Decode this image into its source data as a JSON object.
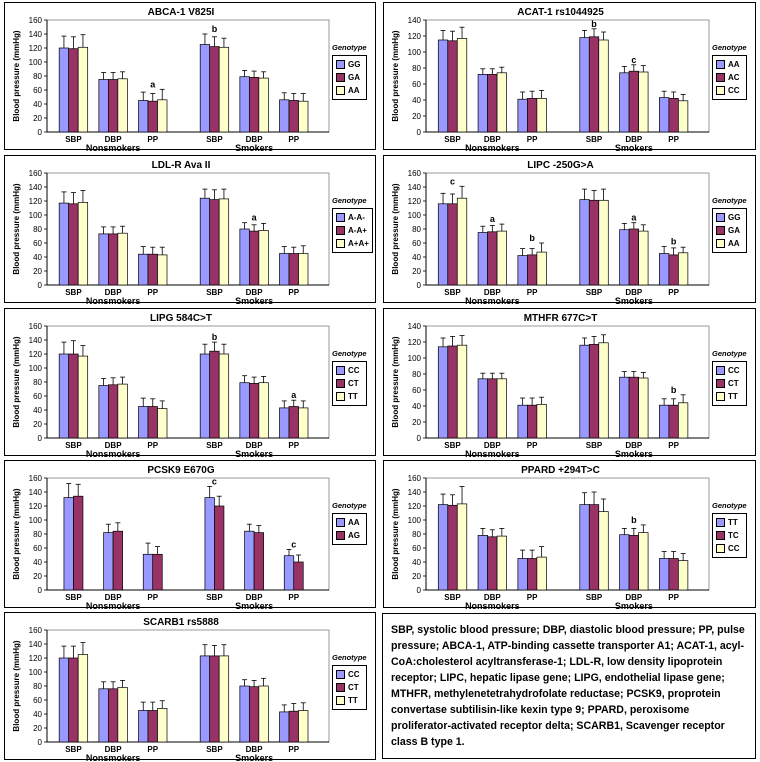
{
  "colors": {
    "s0": "#9999ff",
    "s1": "#993366",
    "s2": "#ffffcc"
  },
  "charts": [
    {
      "title": "ABCA-1 V825I",
      "legend_title": "Genotype",
      "series": [
        "GG",
        "GA",
        "AA"
      ],
      "categories": [
        "SBP",
        "DBP",
        "PP"
      ],
      "groups": [
        "Nonsmokers",
        "Smokers"
      ],
      "ylabel": "Blood pressure (mmHg)",
      "ylim": [
        0,
        160
      ],
      "yticks": [
        "0",
        "20",
        "40",
        "60",
        "80",
        "100",
        "120",
        "140",
        "160"
      ],
      "values": [
        [
          [
            120,
            119,
            121
          ],
          [
            75,
            75,
            76
          ],
          [
            45,
            44,
            46
          ]
        ],
        [
          [
            125,
            122,
            121
          ],
          [
            79,
            78,
            77
          ],
          [
            46,
            45,
            44
          ]
        ]
      ],
      "errors": [
        [
          [
            17,
            17,
            18
          ],
          [
            10,
            10,
            10
          ],
          [
            12,
            11,
            15
          ]
        ],
        [
          [
            15,
            14,
            13
          ],
          [
            9,
            9,
            9
          ],
          [
            10,
            10,
            11
          ]
        ]
      ],
      "annotations": [
        {
          "group": 1,
          "cat": 0,
          "text": "b"
        },
        {
          "group": 0,
          "cat": 2,
          "text": "a"
        }
      ]
    },
    {
      "title": "ACAT-1 rs1044925",
      "legend_title": "Genotype",
      "series": [
        "AA",
        "AC",
        "CC"
      ],
      "categories": [
        "SBP",
        "DBP",
        "PP"
      ],
      "groups": [
        "Nonsmokers",
        "Smokers"
      ],
      "ylabel": "Blood pressure (mmHg)",
      "ylim": [
        0,
        140
      ],
      "yticks": [
        "0",
        "20",
        "40",
        "60",
        "80",
        "100",
        "120",
        "140"
      ],
      "values": [
        [
          [
            115,
            114,
            117
          ],
          [
            72,
            72,
            74
          ],
          [
            41,
            42,
            42
          ]
        ],
        [
          [
            118,
            119,
            115
          ],
          [
            74,
            76,
            75
          ],
          [
            43,
            42,
            39
          ]
        ]
      ],
      "errors": [
        [
          [
            12,
            12,
            14
          ],
          [
            7,
            7,
            7
          ],
          [
            9,
            9,
            10
          ]
        ],
        [
          [
            9,
            10,
            10
          ],
          [
            8,
            8,
            8
          ],
          [
            8,
            8,
            8
          ]
        ]
      ],
      "annotations": [
        {
          "group": 1,
          "cat": 0,
          "text": "b"
        },
        {
          "group": 1,
          "cat": 1,
          "text": "c"
        }
      ]
    },
    {
      "title": "LDL-R Ava II",
      "legend_title": "Genotype",
      "series": [
        "A-A-",
        "A-A+",
        "A+A+"
      ],
      "categories": [
        "SBP",
        "DBP",
        "PP"
      ],
      "groups": [
        "Nonsmokers",
        "Smokers"
      ],
      "ylabel": "Blood pressure (mmHg)",
      "ylim": [
        0,
        160
      ],
      "yticks": [
        "0",
        "20",
        "40",
        "60",
        "80",
        "100",
        "120",
        "140",
        "160"
      ],
      "values": [
        [
          [
            117,
            116,
            118
          ],
          [
            73,
            73,
            74
          ],
          [
            44,
            44,
            43
          ]
        ],
        [
          [
            124,
            122,
            123
          ],
          [
            80,
            77,
            78
          ],
          [
            45,
            45,
            45
          ]
        ]
      ],
      "errors": [
        [
          [
            16,
            16,
            17
          ],
          [
            10,
            10,
            10
          ],
          [
            11,
            10,
            11
          ]
        ],
        [
          [
            13,
            14,
            14
          ],
          [
            9,
            9,
            10
          ],
          [
            10,
            9,
            11
          ]
        ]
      ],
      "annotations": [
        {
          "group": 1,
          "cat": 1,
          "text": "a"
        }
      ]
    },
    {
      "title": "LIPC -250G>A",
      "legend_title": "Genotype",
      "series": [
        "GG",
        "GA",
        "AA"
      ],
      "categories": [
        "SBP",
        "DBP",
        "PP"
      ],
      "groups": [
        "Nonsmokers",
        "Smokers"
      ],
      "ylabel": "Blood pressure (mmHg)",
      "ylim": [
        0,
        160
      ],
      "yticks": [
        "0",
        "20",
        "40",
        "60",
        "80",
        "100",
        "120",
        "140",
        "160"
      ],
      "values": [
        [
          [
            116,
            116,
            124
          ],
          [
            75,
            76,
            77
          ],
          [
            42,
            43,
            47
          ]
        ],
        [
          [
            122,
            121,
            121
          ],
          [
            79,
            80,
            77
          ],
          [
            45,
            43,
            46
          ]
        ]
      ],
      "errors": [
        [
          [
            15,
            14,
            17
          ],
          [
            9,
            9,
            10
          ],
          [
            10,
            9,
            13
          ]
        ],
        [
          [
            15,
            14,
            16
          ],
          [
            9,
            9,
            9
          ],
          [
            10,
            10,
            8
          ]
        ]
      ],
      "annotations": [
        {
          "group": 0,
          "cat": 0,
          "text": "c"
        },
        {
          "group": 0,
          "cat": 1,
          "text": "a"
        },
        {
          "group": 0,
          "cat": 2,
          "text": "b"
        },
        {
          "group": 1,
          "cat": 1,
          "text": "a"
        },
        {
          "group": 1,
          "cat": 2,
          "text": "b"
        }
      ]
    },
    {
      "title": "LIPG 584C>T",
      "legend_title": "Genotype",
      "series": [
        "CC",
        "CT",
        "TT"
      ],
      "categories": [
        "SBP",
        "DBP",
        "PP"
      ],
      "groups": [
        "Nonsmokers",
        "Smokers"
      ],
      "ylabel": "Blood pressure (mmHg)",
      "ylim": [
        0,
        160
      ],
      "yticks": [
        "0",
        "20",
        "40",
        "60",
        "80",
        "100",
        "120",
        "140",
        "160"
      ],
      "values": [
        [
          [
            120,
            120,
            117
          ],
          [
            75,
            76,
            77
          ],
          [
            45,
            45,
            42
          ]
        ],
        [
          [
            120,
            124,
            120
          ],
          [
            79,
            78,
            79
          ],
          [
            43,
            45,
            43
          ]
        ]
      ],
      "errors": [
        [
          [
            17,
            19,
            15
          ],
          [
            10,
            10,
            10
          ],
          [
            12,
            11,
            11
          ]
        ],
        [
          [
            14,
            13,
            14
          ],
          [
            10,
            9,
            9
          ],
          [
            10,
            9,
            10
          ]
        ]
      ],
      "annotations": [
        {
          "group": 1,
          "cat": 0,
          "text": "b"
        },
        {
          "group": 1,
          "cat": 2,
          "text": "a"
        }
      ]
    },
    {
      "title": "MTHFR 677C>T",
      "legend_title": "Genotype",
      "series": [
        "CC",
        "CT",
        "TT"
      ],
      "categories": [
        "SBP",
        "DBP",
        "PP"
      ],
      "groups": [
        "Nonsmokers",
        "Smokers"
      ],
      "ylabel": "Blood pressure (mmHg)",
      "ylim": [
        0,
        140
      ],
      "yticks": [
        "0",
        "20",
        "40",
        "60",
        "80",
        "100",
        "120",
        "140"
      ],
      "values": [
        [
          [
            114,
            115,
            116
          ],
          [
            74,
            74,
            74
          ],
          [
            41,
            41,
            42
          ]
        ],
        [
          [
            116,
            117,
            119
          ],
          [
            76,
            76,
            75
          ],
          [
            41,
            41,
            44
          ]
        ]
      ],
      "errors": [
        [
          [
            11,
            12,
            12
          ],
          [
            7,
            7,
            7
          ],
          [
            9,
            9,
            9
          ]
        ],
        [
          [
            9,
            10,
            10
          ],
          [
            7,
            7,
            7
          ],
          [
            8,
            8,
            10
          ]
        ]
      ],
      "annotations": [
        {
          "group": 1,
          "cat": 2,
          "text": "b"
        }
      ]
    },
    {
      "title": "PCSK9 E670G",
      "legend_title": "Genotype",
      "series": [
        "AA",
        "AG"
      ],
      "categories": [
        "SBP",
        "DBP",
        "PP"
      ],
      "groups": [
        "Nonsmokers",
        "Smokers"
      ],
      "ylabel": "Blood pressure (mmHg)",
      "ylim": [
        0,
        160
      ],
      "yticks": [
        "0",
        "20",
        "40",
        "60",
        "80",
        "100",
        "120",
        "140",
        "160"
      ],
      "values": [
        [
          [
            132,
            134
          ],
          [
            82,
            84
          ],
          [
            51,
            51
          ]
        ],
        [
          [
            132,
            120
          ],
          [
            84,
            82
          ],
          [
            49,
            40
          ]
        ]
      ],
      "errors": [
        [
          [
            20,
            17
          ],
          [
            12,
            12
          ],
          [
            16,
            11
          ]
        ],
        [
          [
            16,
            14
          ],
          [
            10,
            10
          ],
          [
            9,
            10
          ]
        ]
      ],
      "annotations": [
        {
          "group": 1,
          "cat": 0,
          "text": "c"
        },
        {
          "group": 1,
          "cat": 2,
          "text": "c"
        }
      ]
    },
    {
      "title": "PPARD +294T>C",
      "legend_title": "Genotype",
      "series": [
        "TT",
        "TC",
        "CC"
      ],
      "categories": [
        "SBP",
        "DBP",
        "PP"
      ],
      "groups": [
        "Nonsmokers",
        "Smokers"
      ],
      "ylabel": "Blood pressure (mmHg)",
      "ylim": [
        0,
        160
      ],
      "yticks": [
        "0",
        "20",
        "40",
        "60",
        "80",
        "100",
        "120",
        "140",
        "160"
      ],
      "values": [
        [
          [
            122,
            121,
            123
          ],
          [
            78,
            76,
            77
          ],
          [
            45,
            45,
            47
          ]
        ],
        [
          [
            122,
            122,
            112
          ],
          [
            79,
            78,
            82
          ],
          [
            45,
            45,
            42
          ]
        ]
      ],
      "errors": [
        [
          [
            15,
            15,
            25
          ],
          [
            10,
            10,
            11
          ],
          [
            12,
            12,
            15
          ]
        ],
        [
          [
            17,
            18,
            18
          ],
          [
            9,
            10,
            11
          ],
          [
            10,
            10,
            10
          ]
        ]
      ],
      "annotations": [
        {
          "group": 1,
          "cat": 1,
          "text": "b"
        }
      ]
    },
    {
      "title": "SCARB1 rs5888",
      "legend_title": "Genotype",
      "series": [
        "CC",
        "CT",
        "TT"
      ],
      "categories": [
        "SBP",
        "DBP",
        "PP"
      ],
      "groups": [
        "Nonsmokers",
        "Smokers"
      ],
      "ylabel": "Blood pressure (mmHg)",
      "ylim": [
        0,
        160
      ],
      "yticks": [
        "0",
        "20",
        "40",
        "60",
        "80",
        "100",
        "120",
        "140",
        "160"
      ],
      "values": [
        [
          [
            120,
            120,
            125
          ],
          [
            76,
            76,
            78
          ],
          [
            45,
            45,
            48
          ]
        ],
        [
          [
            123,
            123,
            123
          ],
          [
            80,
            79,
            80
          ],
          [
            43,
            44,
            45
          ]
        ]
      ],
      "errors": [
        [
          [
            17,
            17,
            17
          ],
          [
            10,
            10,
            10
          ],
          [
            12,
            12,
            11
          ]
        ],
        [
          [
            16,
            15,
            16
          ],
          [
            9,
            9,
            11
          ],
          [
            10,
            11,
            11
          ]
        ]
      ],
      "annotations": []
    }
  ],
  "caption": "SBP, systolic blood pressure; DBP, diastolic blood pressure; PP, pulse pressure; ABCA-1, ATP-binding cassette transporter A1; ACAT-1, acyl-CoA:cholesterol acyltransferase-1; LDL-R, low density lipoprotein receptor; LIPC, hepatic lipase gene; LIPG, endothelial lipase gene; MTHFR, methylenetetrahydrofolate reductase; PCSK9, proprotein convertase subtilisin-like kexin type 9; PPARD, peroxisome proliferator-activated receptor delta; SCARB1, Scavenger receptor class B type 1."
}
